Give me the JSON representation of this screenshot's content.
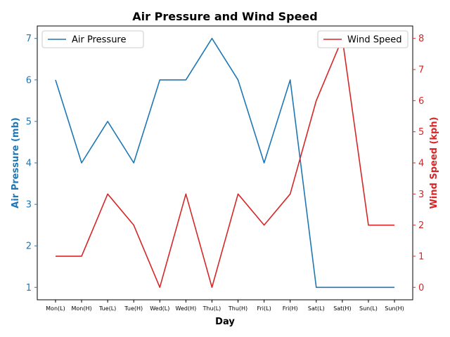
{
  "chart_data": {
    "type": "line",
    "title": "Air Pressure and Wind Speed",
    "xlabel": "Day",
    "categories": [
      "Mon(L)",
      "Mon(H)",
      "Tue(L)",
      "Tue(H)",
      "Wed(L)",
      "Wed(H)",
      "Thu(L)",
      "Thu(H)",
      "Fri(L)",
      "Fri(H)",
      "Sat(L)",
      "Sat(H)",
      "Sun(L)",
      "Sun(H)"
    ],
    "series": [
      {
        "name": "Air Pressure",
        "axis": "left",
        "color": "#1f77b4",
        "values": [
          6,
          4,
          5,
          4,
          6,
          6,
          7,
          6,
          4,
          6,
          1,
          1,
          1,
          1
        ]
      },
      {
        "name": "Wind Speed",
        "axis": "right",
        "color": "#d62728",
        "values": [
          1,
          1,
          3,
          2,
          0,
          3,
          0,
          3,
          2,
          3,
          6,
          8,
          2,
          2
        ]
      }
    ],
    "y_left": {
      "label": "Air Pressure (mb)",
      "ylim": [
        0.7,
        7.3
      ],
      "ticks": [
        1,
        2,
        3,
        4,
        5,
        6,
        7
      ]
    },
    "y_right": {
      "label": "Wind Speed (kph)",
      "ylim": [
        -0.4,
        8.4
      ],
      "ticks": [
        0,
        1,
        2,
        3,
        4,
        5,
        6,
        7,
        8
      ]
    },
    "grid": false,
    "legends": [
      {
        "series": "Air Pressure",
        "placement": "top-left"
      },
      {
        "series": "Wind Speed",
        "placement": "top-right"
      }
    ]
  }
}
